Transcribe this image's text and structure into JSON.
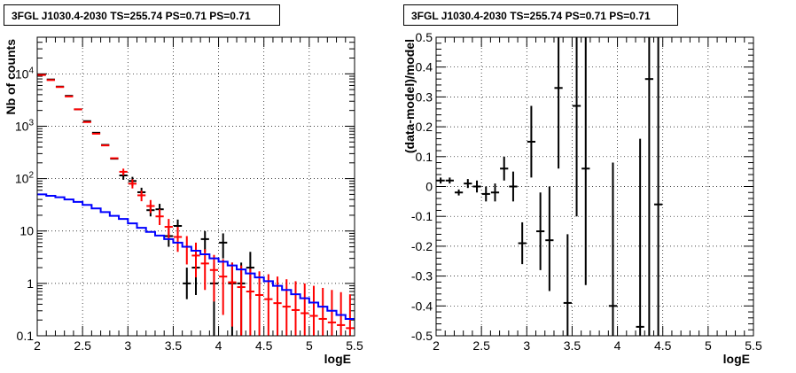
{
  "chart_data": [
    {
      "type": "scatter",
      "title": "3FGL J1030.4-2030 TS=255.74 PS=0.71 PS=0.71",
      "xlabel": "logE",
      "ylabel": "Nb of counts",
      "xlim": [
        2,
        5.5
      ],
      "ylim": [
        0.1,
        50000
      ],
      "yscale": "log",
      "grid": true,
      "x_ticks": [
        "2",
        "2.5",
        "3",
        "3.5",
        "4",
        "4.5",
        "5",
        "5.5"
      ],
      "y_ticks": [
        "0.1",
        "1",
        "10",
        "10^2",
        "10^3",
        "10^4"
      ],
      "series": [
        {
          "color": "#000000",
          "points": [
            {
              "x": 2.05,
              "y": 9600
            },
            {
              "x": 2.15,
              "y": 7800
            },
            {
              "x": 2.25,
              "y": 5700
            },
            {
              "x": 2.35,
              "y": 3800
            },
            {
              "x": 2.45,
              "y": 2100
            },
            {
              "x": 2.55,
              "y": 1250
            },
            {
              "x": 2.65,
              "y": 750
            },
            {
              "x": 2.75,
              "y": 440
            },
            {
              "x": 2.85,
              "y": 240
            },
            {
              "x": 2.95,
              "y": 115,
              "lo": 95,
              "hi": 135
            },
            {
              "x": 3.05,
              "y": 90,
              "lo": 72,
              "hi": 108
            },
            {
              "x": 3.15,
              "y": 55,
              "lo": 45,
              "hi": 67
            },
            {
              "x": 3.25,
              "y": 25,
              "lo": 19,
              "hi": 32
            },
            {
              "x": 3.35,
              "y": 26,
              "lo": 20,
              "hi": 33
            },
            {
              "x": 3.45,
              "y": 8,
              "lo": 5,
              "hi": 11.5
            },
            {
              "x": 3.55,
              "y": 12.5,
              "lo": 9,
              "hi": 16.5
            },
            {
              "x": 3.65,
              "y": 1,
              "lo": 0.5,
              "hi": 2
            },
            {
              "x": 3.75,
              "y": 2,
              "lo": 0.6,
              "hi": 4
            },
            {
              "x": 3.85,
              "y": 7,
              "lo": 4,
              "hi": 10
            },
            {
              "x": 3.95,
              "y": 1,
              "lo": 0.1,
              "hi": 2.5
            },
            {
              "x": 4.05,
              "y": 6,
              "lo": 3,
              "hi": 9
            },
            {
              "x": 4.15,
              "y": 1,
              "lo": 0.1,
              "hi": 2.5
            },
            {
              "x": 4.25,
              "y": 1,
              "lo": 0.1,
              "hi": 2.5
            },
            {
              "x": 4.35,
              "y": 2,
              "lo": 0.5,
              "hi": 4
            }
          ]
        },
        {
          "color": "#ff0000",
          "points": [
            {
              "x": 2.05,
              "y": 9500
            },
            {
              "x": 2.15,
              "y": 7600
            },
            {
              "x": 2.25,
              "y": 5600
            },
            {
              "x": 2.35,
              "y": 3700
            },
            {
              "x": 2.45,
              "y": 2100
            },
            {
              "x": 2.55,
              "y": 1200
            },
            {
              "x": 2.65,
              "y": 720
            },
            {
              "x": 2.75,
              "y": 430
            },
            {
              "x": 2.85,
              "y": 245
            },
            {
              "x": 2.95,
              "y": 135,
              "lo": 115,
              "hi": 155
            },
            {
              "x": 3.05,
              "y": 80,
              "lo": 65,
              "hi": 97
            },
            {
              "x": 3.15,
              "y": 48,
              "lo": 37,
              "hi": 59
            },
            {
              "x": 3.25,
              "y": 30,
              "lo": 22,
              "hi": 39
            },
            {
              "x": 3.35,
              "y": 19,
              "lo": 13,
              "hi": 26
            },
            {
              "x": 3.45,
              "y": 12,
              "lo": 7,
              "hi": 17
            },
            {
              "x": 3.55,
              "y": 7.7,
              "lo": 4,
              "hi": 12
            },
            {
              "x": 3.65,
              "y": 5,
              "lo": 2.3,
              "hi": 8
            },
            {
              "x": 3.75,
              "y": 3.4,
              "lo": 1.3,
              "hi": 6
            },
            {
              "x": 3.85,
              "y": 2.4,
              "lo": 0.75,
              "hi": 4.5
            },
            {
              "x": 3.95,
              "y": 1.8,
              "lo": 0.45,
              "hi": 3.5
            },
            {
              "x": 4.05,
              "y": 1.35,
              "lo": 0.25,
              "hi": 2.9
            },
            {
              "x": 4.15,
              "y": 1.05,
              "lo": 0.15,
              "hi": 2.5
            },
            {
              "x": 4.25,
              "y": 0.85,
              "lo": 0.1,
              "hi": 2.2
            },
            {
              "x": 4.35,
              "y": 0.7,
              "lo": 0.1,
              "hi": 1.9
            },
            {
              "x": 4.45,
              "y": 0.6,
              "lo": 0.1,
              "hi": 1.7
            },
            {
              "x": 4.55,
              "y": 0.5,
              "lo": 0.1,
              "hi": 1.5
            },
            {
              "x": 4.65,
              "y": 0.42,
              "lo": 0.1,
              "hi": 1.35
            },
            {
              "x": 4.75,
              "y": 0.36,
              "lo": 0.1,
              "hi": 1.2
            },
            {
              "x": 4.85,
              "y": 0.31,
              "lo": 0.1,
              "hi": 1.1
            },
            {
              "x": 4.95,
              "y": 0.27,
              "lo": 0.1,
              "hi": 1.0
            },
            {
              "x": 5.05,
              "y": 0.24,
              "lo": 0.1,
              "hi": 0.9
            },
            {
              "x": 5.15,
              "y": 0.21,
              "lo": 0.1,
              "hi": 0.82
            },
            {
              "x": 5.25,
              "y": 0.18,
              "lo": 0.1,
              "hi": 0.75
            },
            {
              "x": 5.35,
              "y": 0.16,
              "lo": 0.1,
              "hi": 0.68
            },
            {
              "x": 5.45,
              "y": 0.14,
              "lo": 0.1,
              "hi": 0.62
            }
          ]
        },
        {
          "color": "#0000ff",
          "type": "step",
          "x_edges": [
            2.0,
            2.1,
            2.2,
            2.3,
            2.4,
            2.5,
            2.6,
            2.7,
            2.8,
            2.9,
            3.0,
            3.1,
            3.2,
            3.3,
            3.4,
            3.5,
            3.6,
            3.7,
            3.8,
            3.9,
            4.0,
            4.1,
            4.2,
            4.3,
            4.4,
            4.5,
            4.6,
            4.7,
            4.8,
            4.9,
            5.0,
            5.1,
            5.2,
            5.3,
            5.4,
            5.5
          ],
          "values": [
            50,
            47,
            44,
            40,
            36,
            31.5,
            27,
            23,
            19.5,
            17,
            14,
            11.5,
            9.6,
            8.2,
            7,
            6,
            5,
            4.2,
            3.6,
            3,
            2.6,
            2.2,
            1.85,
            1.55,
            1.3,
            1.1,
            0.9,
            0.75,
            0.62,
            0.52,
            0.43,
            0.36,
            0.3,
            0.25,
            0.21
          ]
        }
      ]
    },
    {
      "type": "scatter",
      "title": "3FGL J1030.4-2030 TS=255.74 PS=0.71 PS=0.71",
      "xlabel": "logE",
      "ylabel": "(data-model)/model",
      "xlim": [
        2,
        5.5
      ],
      "ylim": [
        -0.5,
        0.5
      ],
      "grid": true,
      "x_ticks": [
        "2",
        "2.5",
        "3",
        "3.5",
        "4",
        "4.5",
        "5",
        "5.5"
      ],
      "y_ticks": [
        "-0.5",
        "-0.4",
        "-0.3",
        "-0.2",
        "-0.1",
        "0",
        "0.1",
        "0.2",
        "0.3",
        "0.4",
        "0.5"
      ],
      "series": [
        {
          "color": "#000000",
          "points": [
            {
              "x": 2.05,
              "y": 0.02,
              "lo": 0.01,
              "hi": 0.03
            },
            {
              "x": 2.15,
              "y": 0.02,
              "lo": 0.01,
              "hi": 0.03
            },
            {
              "x": 2.25,
              "y": -0.02,
              "lo": -0.03,
              "hi": -0.01
            },
            {
              "x": 2.35,
              "y": 0.01,
              "lo": -0.005,
              "hi": 0.025
            },
            {
              "x": 2.45,
              "y": 0.0,
              "lo": -0.02,
              "hi": 0.02
            },
            {
              "x": 2.55,
              "y": -0.025,
              "lo": -0.05,
              "hi": 0.0
            },
            {
              "x": 2.65,
              "y": -0.02,
              "lo": -0.05,
              "hi": 0.01
            },
            {
              "x": 2.75,
              "y": 0.06,
              "lo": 0.02,
              "hi": 0.1
            },
            {
              "x": 2.85,
              "y": 0.0,
              "lo": -0.05,
              "hi": 0.05
            },
            {
              "x": 2.95,
              "y": -0.19,
              "lo": -0.26,
              "hi": -0.12
            },
            {
              "x": 3.05,
              "y": 0.15,
              "lo": 0.03,
              "hi": 0.27
            },
            {
              "x": 3.15,
              "y": -0.15,
              "lo": -0.28,
              "hi": -0.02
            },
            {
              "x": 3.25,
              "y": -0.18,
              "lo": -0.35,
              "hi": 0.0
            },
            {
              "x": 3.35,
              "y": 0.33,
              "lo": 0.06,
              "hi": 0.5
            },
            {
              "x": 3.45,
              "y": -0.39,
              "lo": -0.5,
              "hi": -0.16
            },
            {
              "x": 3.55,
              "y": 0.27,
              "lo": -0.1,
              "hi": 0.5
            },
            {
              "x": 3.65,
              "y": 0.06,
              "lo": -0.33,
              "hi": 0.5
            },
            {
              "x": 3.95,
              "y": -0.4,
              "lo": -0.5,
              "hi": 0.08
            },
            {
              "x": 4.25,
              "y": -0.47,
              "lo": -0.5,
              "hi": 0.16
            },
            {
              "x": 4.35,
              "y": 0.36,
              "lo": -0.5,
              "hi": 0.5
            },
            {
              "x": 4.45,
              "y": -0.06,
              "lo": -0.5,
              "hi": 0.5
            }
          ]
        }
      ]
    }
  ]
}
